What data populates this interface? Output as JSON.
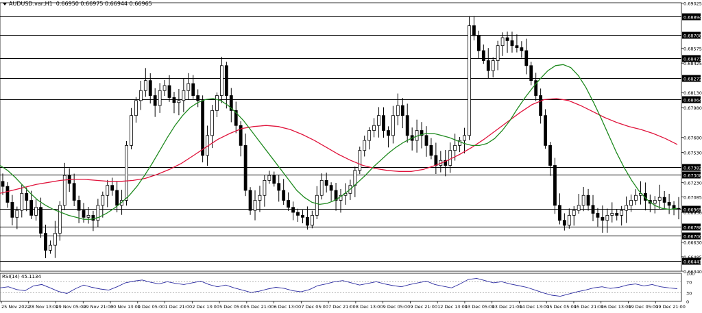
{
  "header": {
    "symbol": "AUDUSD.var,H1",
    "quote": "0.66950 0.66975 0.66944 0.66965"
  },
  "rsi": {
    "label": "RSI(14) 45.1134",
    "value": 45.1134,
    "levels_labels": [
      "100",
      "70",
      "30",
      "0"
    ]
  },
  "colors": {
    "candles": "#000000",
    "ma_fast": "#1f8a1f",
    "ma_slow": "#e0143c",
    "rsi_line": "#2a2aa0",
    "grid": "#000000"
  },
  "chart_data": {
    "type": "line",
    "title": "AUDUSD.var,H1",
    "y_tick_labels": [
      "0.69025",
      "0.68575",
      "0.68425",
      "0.68130",
      "0.67980",
      "0.67680",
      "0.67530",
      "0.67230",
      "0.67085",
      "0.66930",
      "0.66630",
      "0.66485",
      "0.66340"
    ],
    "ylim": [
      0.6634,
      0.6903
    ],
    "x_tick_labels": [
      "25 Nov 2022",
      "28 Nov 13:00",
      "29 Nov 05:00",
      "29 Nov 21:00",
      "30 Nov 13:00",
      "1 Dec 05:00",
      "1 Dec 21:00",
      "2 Dec 13:00",
      "5 Dec 05:00",
      "5 Dec 21:00",
      "6 Dec 13:00",
      "7 Dec 05:00",
      "7 Dec 21:00",
      "8 Dec 13:00",
      "9 Dec 05:00",
      "9 Dec 21:00",
      "12 Dec 13:00",
      "13 Dec 05:00",
      "13 Dec 21:00",
      "14 Dec 13:00",
      "15 Dec 05:00",
      "15 Dec 21:00",
      "16 Dec 13:00",
      "19 Dec 05:00",
      "19 Dec 21:00"
    ],
    "horizontal_levels": [
      0.68894,
      0.68708,
      0.68473,
      0.68272,
      0.68064,
      0.67382,
      0.67308,
      0.66965,
      0.66788,
      0.667,
      0.66441
    ],
    "series": [
      {
        "name": "Close",
        "values": [
          0.6719,
          0.6703,
          0.6688,
          0.6695,
          0.6712,
          0.6705,
          0.669,
          0.6698,
          0.6672,
          0.6655,
          0.666,
          0.6672,
          0.67,
          0.673,
          0.6722,
          0.6705,
          0.6695,
          0.6688,
          0.669,
          0.6685,
          0.67,
          0.671,
          0.672,
          0.6715,
          0.67,
          0.6705,
          0.676,
          0.679,
          0.6805,
          0.6815,
          0.6825,
          0.681,
          0.68,
          0.6815,
          0.682,
          0.6808,
          0.6803,
          0.6805,
          0.6815,
          0.6822,
          0.681,
          0.6805,
          0.675,
          0.677,
          0.6795,
          0.681,
          0.684,
          0.681,
          0.6795,
          0.678,
          0.676,
          0.6715,
          0.6695,
          0.6705,
          0.671,
          0.6725,
          0.673,
          0.6722,
          0.6715,
          0.6705,
          0.6698,
          0.6693,
          0.669,
          0.6688,
          0.668,
          0.669,
          0.671,
          0.6725,
          0.672,
          0.6715,
          0.6705,
          0.671,
          0.6712,
          0.672,
          0.6735,
          0.6755,
          0.6765,
          0.6775,
          0.678,
          0.679,
          0.6775,
          0.677,
          0.679,
          0.68,
          0.679,
          0.677,
          0.6765,
          0.6775,
          0.677,
          0.676,
          0.675,
          0.674,
          0.6745,
          0.674,
          0.6755,
          0.676,
          0.6765,
          0.677,
          0.688,
          0.687,
          0.6855,
          0.6845,
          0.6835,
          0.6845,
          0.686,
          0.6868,
          0.6865,
          0.686,
          0.6858,
          0.6855,
          0.684,
          0.6825,
          0.681,
          0.679,
          0.676,
          0.674,
          0.67,
          0.6685,
          0.668,
          0.669,
          0.6695,
          0.67,
          0.671,
          0.67,
          0.6692,
          0.6688,
          0.6685,
          0.669,
          0.6692,
          0.669,
          0.6695,
          0.67,
          0.6705,
          0.671,
          0.6712,
          0.6705,
          0.6702,
          0.6705,
          0.6708,
          0.6703,
          0.67,
          0.6697,
          0.66965
        ]
      },
      {
        "name": "MA fast",
        "values": [
          0.674,
          0.6735,
          0.6728,
          0.672,
          0.6712,
          0.6705,
          0.67,
          0.6696,
          0.6693,
          0.669,
          0.6688,
          0.6686,
          0.6686,
          0.6688,
          0.6692,
          0.6697,
          0.6703,
          0.671,
          0.6719,
          0.673,
          0.6742,
          0.6755,
          0.6768,
          0.678,
          0.679,
          0.6798,
          0.6803,
          0.6806,
          0.6807,
          0.6805,
          0.68,
          0.6793,
          0.6785,
          0.6775,
          0.6765,
          0.6755,
          0.6745,
          0.6735,
          0.6725,
          0.6715,
          0.6708,
          0.6703,
          0.6701,
          0.6702,
          0.6705,
          0.671,
          0.6716,
          0.6723,
          0.673,
          0.6738,
          0.6745,
          0.6752,
          0.6758,
          0.6763,
          0.6767,
          0.677,
          0.6772,
          0.6772,
          0.677,
          0.6768,
          0.6765,
          0.6762,
          0.676,
          0.676,
          0.6762,
          0.6767,
          0.6775,
          0.6785,
          0.6797,
          0.6808,
          0.6818,
          0.6827,
          0.6835,
          0.684,
          0.6841,
          0.6838,
          0.683,
          0.6818,
          0.6803,
          0.6787,
          0.677,
          0.6753,
          0.6738,
          0.6725,
          0.6714,
          0.6706,
          0.67,
          0.6697,
          0.6696,
          0.6697
        ]
      },
      {
        "name": "MA slow",
        "values": [
          0.6712,
          0.6715,
          0.6718,
          0.6721,
          0.6723,
          0.6725,
          0.6726,
          0.6726,
          0.6725,
          0.6724,
          0.6724,
          0.6725,
          0.6727,
          0.6731,
          0.6736,
          0.6742,
          0.675,
          0.6758,
          0.6766,
          0.6772,
          0.6777,
          0.6779,
          0.678,
          0.6779,
          0.6776,
          0.6771,
          0.6765,
          0.6758,
          0.6751,
          0.6745,
          0.674,
          0.6737,
          0.6735,
          0.6734,
          0.6734,
          0.6736,
          0.674,
          0.6745,
          0.6751,
          0.6758,
          0.6766,
          0.6775,
          0.6784,
          0.6793,
          0.6801,
          0.6806,
          0.6807,
          0.6805,
          0.68,
          0.6794,
          0.6788,
          0.6783,
          0.6779,
          0.6776,
          0.6772,
          0.6767,
          0.6761
        ]
      },
      {
        "name": "RSI(14)",
        "values": [
          48,
          52,
          42,
          38,
          55,
          60,
          48,
          35,
          28,
          45,
          58,
          50,
          44,
          40,
          52,
          66,
          72,
          76,
          68,
          62,
          70,
          64,
          60,
          66,
          72,
          60,
          52,
          58,
          48,
          40,
          32,
          36,
          44,
          50,
          46,
          38,
          34,
          42,
          56,
          62,
          70,
          74,
          66,
          58,
          64,
          70,
          62,
          56,
          52,
          60,
          66,
          72,
          60,
          54,
          48,
          62,
          78,
          82,
          74,
          66,
          70,
          62,
          56,
          50,
          40,
          30,
          22,
          18,
          26,
          34,
          40,
          48,
          52,
          46,
          50,
          58,
          62,
          55,
          60,
          52,
          48,
          45
        ]
      }
    ]
  }
}
